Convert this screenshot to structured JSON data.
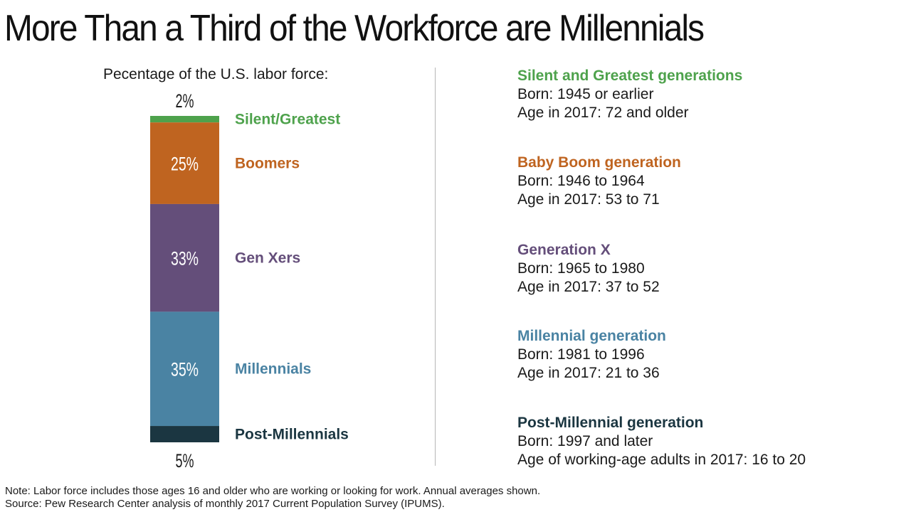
{
  "title": "More Than a Third of the Workforce are Millennials",
  "chart_caption": "Pecentage of the U.S. labor force:",
  "chart_data": {
    "type": "bar",
    "stacked": true,
    "categories": [
      "Silent/Greatest",
      "Boomers",
      "Gen Xers",
      "Millennials",
      "Post-Millennials"
    ],
    "values": [
      2,
      25,
      33,
      35,
      5
    ],
    "value_labels": [
      "2%",
      "25%",
      "33%",
      "35%",
      "5%"
    ],
    "colors": [
      "#4ea24c",
      "#bf6420",
      "#644e7a",
      "#4a83a3",
      "#1b3641"
    ],
    "unit": "%"
  },
  "generations": [
    {
      "title": "Silent and Greatest generations",
      "line1": "Born: 1945 or earlier",
      "line2": "Age in 2017: 72 and older",
      "color": "#4ea24c"
    },
    {
      "title": "Baby Boom generation",
      "line1": "Born: 1946 to 1964",
      "line2": "Age in 2017: 53 to 71",
      "color": "#bf6420"
    },
    {
      "title": "Generation X",
      "line1": "Born: 1965 to 1980",
      "line2": "Age in 2017: 37 to 52",
      "color": "#644e7a"
    },
    {
      "title": "Millennial generation",
      "line1": "Born: 1981 to 1996",
      "line2": "Age in 2017: 21 to 36",
      "color": "#4a83a3"
    },
    {
      "title": "Post-Millennial generation",
      "line1": "Born: 1997 and later",
      "line2": "Age of working-age adults in 2017: 16 to 20",
      "color": "#1b3641"
    }
  ],
  "footer": {
    "note": "Note: Labor force includes those ages 16 and older who are working or looking for work. Annual averages shown.",
    "source": "Source: Pew Research Center analysis of monthly 2017 Current Population Survey (IPUMS)."
  }
}
